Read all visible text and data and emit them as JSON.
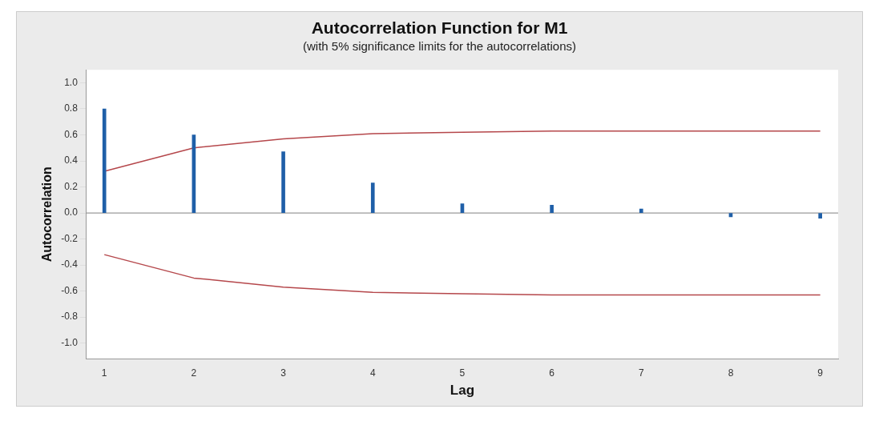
{
  "chart_data": {
    "type": "bar",
    "title": "Autocorrelation Function for M1",
    "subtitle": "(with 5% significance limits for the autocorrelations)",
    "xlabel": "Lag",
    "ylabel": "Autocorrelation",
    "x": [
      1,
      2,
      3,
      4,
      5,
      6,
      7,
      8,
      9
    ],
    "series": [
      {
        "color": "#1f5fa8",
        "values": [
          0.8,
          0.6,
          0.47,
          0.23,
          0.07,
          0.06,
          0.03,
          -0.03,
          -0.04
        ]
      },
      {
        "type": "line",
        "color": "#b5474b",
        "values": [
          0.32,
          0.5,
          0.57,
          0.61,
          0.62,
          0.63,
          0.63,
          0.63,
          0.63
        ]
      },
      {
        "type": "line",
        "color": "#b5474b",
        "values": [
          -0.32,
          -0.5,
          -0.57,
          -0.61,
          -0.62,
          -0.63,
          -0.63,
          -0.63,
          -0.63
        ]
      }
    ],
    "xlim": [
      0.8,
      9.2
    ],
    "xticks": [
      1,
      2,
      3,
      4,
      5,
      6,
      7,
      8,
      9
    ],
    "ylim": [
      -1.12,
      1.1
    ],
    "yticks": [
      {
        "value": -1,
        "label": "-1.0"
      },
      -0.8,
      -0.6,
      -0.4,
      -0.2,
      {
        "value": 0,
        "label": "0.0"
      },
      0.2,
      0.4,
      0.6,
      0.8,
      {
        "value": 1,
        "label": "1.0"
      }
    ],
    "ref_lines": [
      {
        "axis": "y",
        "value": 0,
        "color": "#999999"
      }
    ],
    "marker": "none",
    "line_style": "solid",
    "grid": false,
    "legend": false
  }
}
